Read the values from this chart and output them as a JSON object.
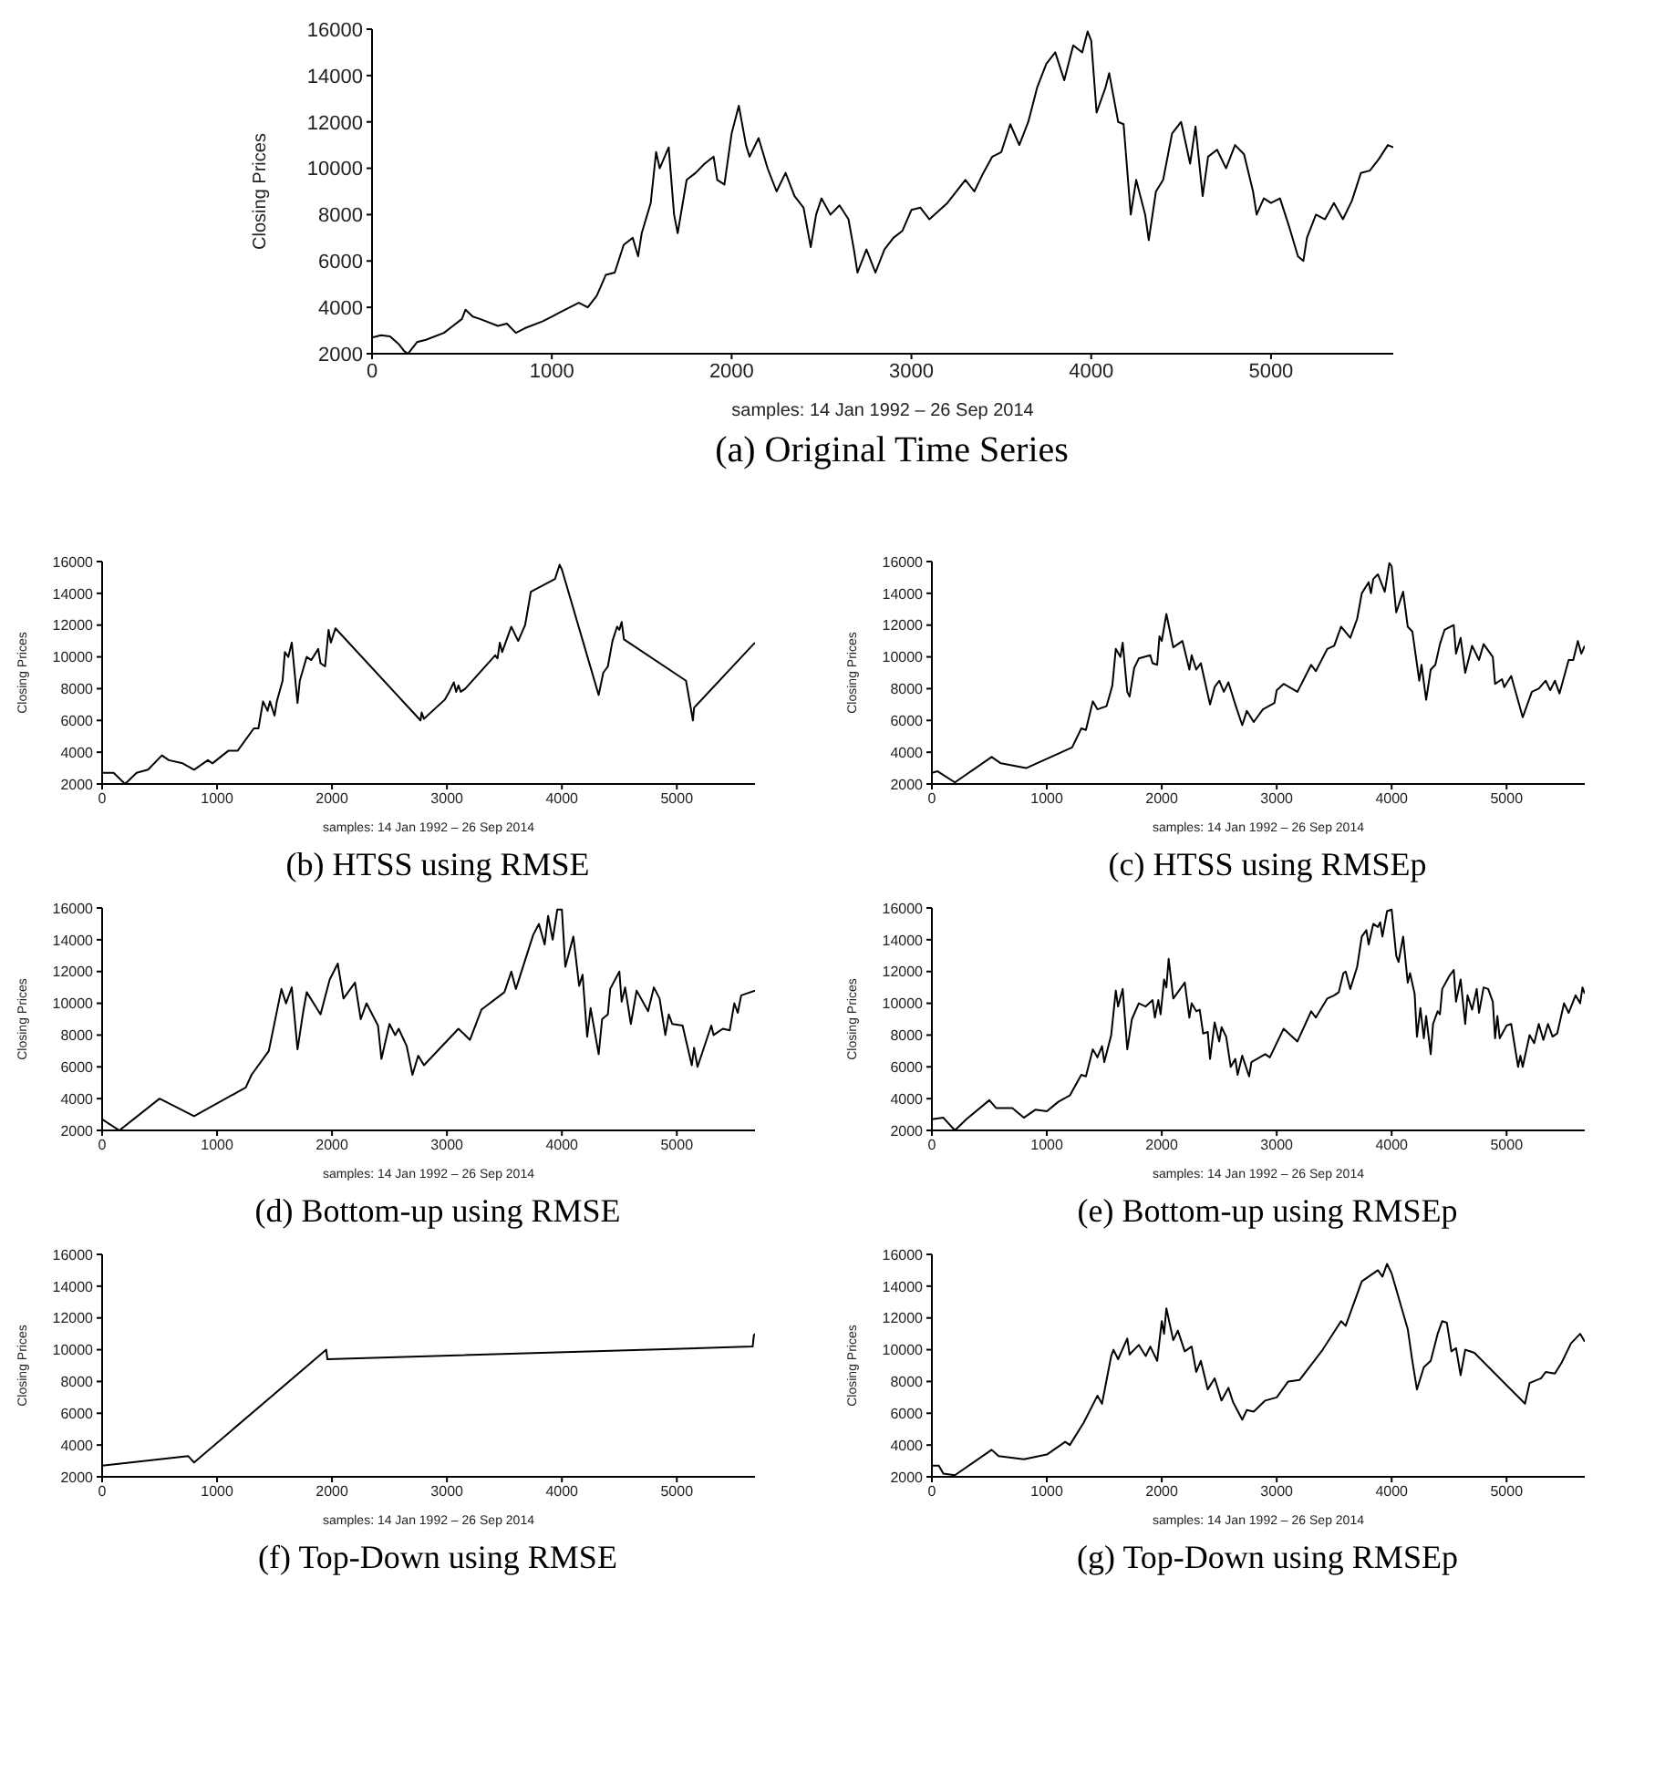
{
  "chart_data": [
    {
      "type": "line",
      "title": "(a) Original Time Series",
      "xlabel": "samples: 14 Jan 1992 – 26 Sep 2014",
      "ylabel": "Closing Prices",
      "color": "#000000",
      "xlim": [
        0,
        5680
      ],
      "ylim": [
        2000,
        16000
      ],
      "xticks": [
        0,
        1000,
        2000,
        3000,
        4000,
        5000
      ],
      "yticks": [
        2000,
        4000,
        6000,
        8000,
        10000,
        12000,
        14000,
        16000
      ],
      "x": [
        0,
        50,
        100,
        150,
        180,
        200,
        250,
        300,
        400,
        450,
        500,
        520,
        560,
        600,
        700,
        750,
        800,
        850,
        950,
        1000,
        1050,
        1100,
        1150,
        1200,
        1250,
        1300,
        1350,
        1400,
        1450,
        1480,
        1500,
        1550,
        1580,
        1600,
        1650,
        1680,
        1700,
        1750,
        1800,
        1850,
        1900,
        1920,
        1960,
        2000,
        2040,
        2080,
        2100,
        2150,
        2200,
        2250,
        2300,
        2350,
        2400,
        2440,
        2470,
        2500,
        2550,
        2600,
        2650,
        2680,
        2700,
        2750,
        2800,
        2850,
        2900,
        2950,
        3000,
        3050,
        3100,
        3200,
        3300,
        3350,
        3400,
        3450,
        3500,
        3550,
        3600,
        3650,
        3700,
        3750,
        3800,
        3850,
        3900,
        3950,
        3980,
        4000,
        4030,
        4080,
        4100,
        4150,
        4180,
        4220,
        4250,
        4300,
        4320,
        4360,
        4400,
        4450,
        4500,
        4550,
        4580,
        4620,
        4650,
        4700,
        4750,
        4800,
        4850,
        4900,
        4920,
        4960,
        5000,
        5050,
        5100,
        5150,
        5180,
        5200,
        5250,
        5300,
        5350,
        5400,
        5450,
        5500,
        5550,
        5600,
        5650,
        5680
      ],
      "values": [
        2700,
        2800,
        2750,
        2400,
        2100,
        2000,
        2500,
        2600,
        2900,
        3200,
        3500,
        3900,
        3600,
        3500,
        3200,
        3300,
        2900,
        3100,
        3400,
        3600,
        3800,
        4000,
        4200,
        4000,
        4500,
        5400,
        5500,
        6700,
        7000,
        6200,
        7200,
        8500,
        10700,
        10000,
        10900,
        8000,
        7200,
        9500,
        9800,
        10200,
        10500,
        9500,
        9300,
        11500,
        12700,
        11000,
        10500,
        11300,
        10000,
        9000,
        9800,
        8800,
        8300,
        6600,
        8000,
        8700,
        8000,
        8400,
        7800,
        6500,
        5500,
        6500,
        5500,
        6500,
        7000,
        7300,
        8200,
        8300,
        7800,
        8500,
        9500,
        9000,
        9800,
        10500,
        10700,
        11900,
        11000,
        12000,
        13500,
        14500,
        15000,
        13800,
        15300,
        15000,
        15900,
        15500,
        12400,
        13500,
        14100,
        12000,
        11900,
        8000,
        9500,
        8000,
        6900,
        9000,
        9500,
        11500,
        12000,
        10200,
        11800,
        8800,
        10500,
        10800,
        10000,
        11000,
        10600,
        9000,
        8000,
        8700,
        8500,
        8700,
        7500,
        6200,
        6000,
        7000,
        8000,
        7800,
        8500,
        7800,
        8600,
        9800,
        9900,
        10400,
        11000,
        10900
      ]
    },
    {
      "type": "line",
      "title": "(b) HTSS using RMSE",
      "xlabel": "samples: 14 Jan 1992 – 26 Sep 2014",
      "ylabel": "Closing Prices",
      "color": "#000000",
      "xlim": [
        0,
        5680
      ],
      "ylim": [
        2000,
        16000
      ],
      "xticks": [
        0,
        1000,
        2000,
        3000,
        4000,
        5000
      ],
      "yticks": [
        2000,
        4000,
        6000,
        8000,
        10000,
        12000,
        14000,
        16000
      ],
      "x": [
        0,
        100,
        200,
        300,
        400,
        520,
        580,
        700,
        800,
        920,
        960,
        1100,
        1180,
        1320,
        1360,
        1400,
        1440,
        1460,
        1500,
        1520,
        1570,
        1590,
        1620,
        1650,
        1700,
        1720,
        1780,
        1820,
        1880,
        1900,
        1940,
        1970,
        1990,
        2030,
        2770,
        2780,
        2800,
        2980,
        3020,
        3060,
        3080,
        3100,
        3120,
        3160,
        3420,
        3440,
        3460,
        3480,
        3560,
        3620,
        3680,
        3730,
        3940,
        3980,
        4000,
        4320,
        4360,
        4400,
        4440,
        4480,
        4500,
        4520,
        4540,
        5080,
        5140,
        5150,
        5680
      ],
      "values": [
        2700,
        2700,
        2000,
        2700,
        2900,
        3800,
        3500,
        3300,
        2900,
        3500,
        3300,
        4100,
        4100,
        5500,
        5500,
        7200,
        6600,
        7200,
        6300,
        7200,
        8500,
        10300,
        10000,
        10900,
        7100,
        8500,
        10000,
        9800,
        10500,
        9600,
        9400,
        11700,
        10900,
        11800,
        6000,
        6500,
        6100,
        7300,
        7800,
        8400,
        7800,
        8200,
        7800,
        8000,
        10100,
        9900,
        10900,
        10300,
        11900,
        11000,
        12000,
        14100,
        14900,
        15800,
        15500,
        7600,
        9000,
        9400,
        11000,
        11900,
        11700,
        12200,
        11100,
        8500,
        6000,
        6800,
        10900
      ]
    },
    {
      "type": "line",
      "title": "(c) HTSS using RMSEp",
      "xlabel": "samples: 14 Jan 1992 – 26 Sep 2014",
      "ylabel": "Closing Prices",
      "color": "#000000",
      "xlim": [
        0,
        5680
      ],
      "ylim": [
        2000,
        16000
      ],
      "xticks": [
        0,
        1000,
        2000,
        3000,
        4000,
        5000
      ],
      "yticks": [
        2000,
        4000,
        6000,
        8000,
        10000,
        12000,
        14000,
        16000
      ],
      "x": [
        0,
        50,
        200,
        520,
        600,
        820,
        1220,
        1300,
        1340,
        1400,
        1440,
        1520,
        1570,
        1600,
        1640,
        1660,
        1700,
        1720,
        1760,
        1800,
        1900,
        1920,
        1960,
        1980,
        2000,
        2040,
        2100,
        2180,
        2240,
        2260,
        2300,
        2340,
        2380,
        2420,
        2460,
        2500,
        2540,
        2580,
        2640,
        2700,
        2740,
        2800,
        2880,
        2980,
        3000,
        3060,
        3180,
        3300,
        3340,
        3440,
        3500,
        3560,
        3640,
        3700,
        3740,
        3800,
        3820,
        3840,
        3880,
        3940,
        3980,
        4000,
        4040,
        4100,
        4140,
        4180,
        4240,
        4260,
        4300,
        4340,
        4380,
        4420,
        4460,
        4540,
        4560,
        4600,
        4640,
        4700,
        4760,
        4800,
        4880,
        4900,
        4960,
        4980,
        5040,
        5140,
        5220,
        5280,
        5340,
        5380,
        5420,
        5460,
        5540,
        5580,
        5620,
        5650,
        5680
      ],
      "values": [
        2700,
        2800,
        2100,
        3700,
        3300,
        3000,
        4300,
        5500,
        5400,
        7200,
        6700,
        6900,
        8200,
        10500,
        10000,
        10900,
        7800,
        7500,
        9300,
        9900,
        10100,
        9600,
        9500,
        11300,
        11000,
        12700,
        10600,
        11000,
        9200,
        10100,
        9200,
        9600,
        8300,
        7000,
        8100,
        8500,
        7800,
        8400,
        7000,
        5700,
        6600,
        5900,
        6700,
        7100,
        7900,
        8300,
        7800,
        9500,
        9100,
        10500,
        10700,
        11900,
        11200,
        12400,
        14000,
        14700,
        14000,
        14900,
        15200,
        14100,
        15900,
        15700,
        12800,
        14100,
        11900,
        11600,
        8500,
        9500,
        7300,
        9200,
        9500,
        10800,
        11700,
        12000,
        10200,
        11200,
        9000,
        10700,
        9800,
        10800,
        10000,
        8300,
        8600,
        8100,
        8800,
        6200,
        7800,
        8000,
        8500,
        7900,
        8500,
        7700,
        9800,
        9800,
        11000,
        10200,
        10700
      ]
    },
    {
      "type": "line",
      "title": "(d) Bottom-up using RMSE",
      "xlabel": "samples: 14 Jan 1992 – 26 Sep 2014",
      "ylabel": "Closing Prices",
      "color": "#000000",
      "xlim": [
        0,
        5680
      ],
      "ylim": [
        2000,
        16000
      ],
      "xticks": [
        0,
        1000,
        2000,
        3000,
        4000,
        5000
      ],
      "yticks": [
        2000,
        4000,
        6000,
        8000,
        10000,
        12000,
        14000,
        16000
      ],
      "x": [
        0,
        150,
        500,
        800,
        1250,
        1300,
        1450,
        1560,
        1600,
        1650,
        1700,
        1750,
        1780,
        1900,
        1980,
        2050,
        2100,
        2200,
        2250,
        2300,
        2400,
        2430,
        2500,
        2550,
        2580,
        2650,
        2700,
        2750,
        2800,
        3100,
        3200,
        3300,
        3500,
        3560,
        3600,
        3750,
        3800,
        3850,
        3880,
        3920,
        3960,
        4000,
        4030,
        4100,
        4150,
        4180,
        4220,
        4250,
        4320,
        4350,
        4400,
        4420,
        4500,
        4520,
        4550,
        4600,
        4650,
        4750,
        4800,
        4850,
        4900,
        4930,
        4960,
        5050,
        5130,
        5150,
        5180,
        5300,
        5320,
        5400,
        5460,
        5500,
        5530,
        5560,
        5680
      ],
      "values": [
        2700,
        2000,
        4000,
        2900,
        4700,
        5500,
        7000,
        10900,
        10000,
        11000,
        7100,
        9500,
        10700,
        9300,
        11500,
        12500,
        10300,
        11300,
        9000,
        10000,
        8600,
        6500,
        8700,
        8000,
        8400,
        7300,
        5500,
        6700,
        6100,
        8400,
        7700,
        9600,
        10700,
        12000,
        10900,
        14300,
        15000,
        13700,
        15500,
        14000,
        15900,
        15900,
        12300,
        14200,
        11100,
        11800,
        7900,
        9700,
        6800,
        9000,
        9300,
        10900,
        12000,
        10100,
        11000,
        8700,
        10800,
        9500,
        11000,
        10300,
        8000,
        9300,
        8700,
        8600,
        6100,
        7200,
        6000,
        8600,
        8000,
        8400,
        8300,
        10000,
        9400,
        10500,
        10800
      ]
    },
    {
      "type": "line",
      "title": "(e) Bottom-up using RMSEp",
      "xlabel": "samples: 14 Jan 1992 – 26 Sep 2014",
      "ylabel": "Closing Prices",
      "color": "#000000",
      "xlim": [
        0,
        5680
      ],
      "ylim": [
        2000,
        16000
      ],
      "xticks": [
        0,
        1000,
        2000,
        3000,
        4000,
        5000
      ],
      "yticks": [
        2000,
        4000,
        6000,
        8000,
        10000,
        12000,
        14000,
        16000
      ],
      "x": [
        0,
        100,
        200,
        300,
        500,
        560,
        700,
        800,
        900,
        1000,
        1100,
        1200,
        1300,
        1340,
        1400,
        1440,
        1480,
        1500,
        1560,
        1600,
        1620,
        1660,
        1700,
        1740,
        1800,
        1860,
        1920,
        1940,
        1970,
        1990,
        2020,
        2040,
        2060,
        2100,
        2200,
        2240,
        2260,
        2300,
        2330,
        2360,
        2400,
        2420,
        2460,
        2500,
        2520,
        2560,
        2600,
        2640,
        2660,
        2700,
        2760,
        2780,
        2900,
        2940,
        3060,
        3180,
        3300,
        3340,
        3440,
        3500,
        3540,
        3580,
        3600,
        3640,
        3700,
        3740,
        3780,
        3800,
        3840,
        3880,
        3900,
        3920,
        3960,
        4000,
        4040,
        4060,
        4100,
        4140,
        4160,
        4200,
        4220,
        4250,
        4280,
        4300,
        4340,
        4360,
        4400,
        4420,
        4440,
        4500,
        4540,
        4560,
        4600,
        4640,
        4660,
        4700,
        4740,
        4760,
        4800,
        4840,
        4880,
        4900,
        4920,
        4940,
        5000,
        5040,
        5100,
        5120,
        5140,
        5200,
        5240,
        5280,
        5320,
        5360,
        5400,
        5440,
        5500,
        5540,
        5600,
        5640,
        5660,
        5680
      ],
      "values": [
        2700,
        2800,
        2000,
        2700,
        3900,
        3400,
        3400,
        2800,
        3300,
        3200,
        3800,
        4200,
        5500,
        5400,
        7100,
        6600,
        7300,
        6300,
        8000,
        10800,
        9800,
        10900,
        7100,
        9000,
        10000,
        9800,
        10200,
        9100,
        10200,
        9300,
        11500,
        11000,
        12800,
        10300,
        11300,
        9100,
        10000,
        9500,
        9600,
        8100,
        8200,
        6500,
        8800,
        7600,
        8500,
        7900,
        6000,
        6500,
        5500,
        6700,
        5400,
        6300,
        6800,
        6600,
        8400,
        7600,
        9500,
        9100,
        10300,
        10500,
        10700,
        11900,
        12000,
        10900,
        12300,
        14200,
        14600,
        13700,
        15000,
        14800,
        15100,
        14200,
        15800,
        15900,
        13000,
        12600,
        14200,
        11300,
        11900,
        10600,
        7900,
        9700,
        7800,
        9200,
        6800,
        8700,
        9500,
        9300,
        10900,
        11700,
        12100,
        10100,
        11500,
        8700,
        10500,
        9600,
        10900,
        9400,
        11000,
        10900,
        10100,
        7800,
        9200,
        7800,
        8600,
        8700,
        6000,
        6700,
        6000,
        8000,
        7500,
        8700,
        7700,
        8700,
        7900,
        8100,
        10000,
        9400,
        10500,
        10000,
        11000,
        10600
      ]
    },
    {
      "type": "line",
      "title": "(f) Top-Down using RMSE",
      "xlabel": "samples: 14 Jan 1992 – 26 Sep 2014",
      "ylabel": "Closing Prices",
      "color": "#000000",
      "xlim": [
        0,
        5680
      ],
      "ylim": [
        2000,
        16000
      ],
      "xticks": [
        0,
        1000,
        2000,
        3000,
        4000,
        5000
      ],
      "yticks": [
        2000,
        4000,
        6000,
        8000,
        10000,
        12000,
        14000,
        16000
      ],
      "x": [
        0,
        750,
        800,
        1950,
        1960,
        5660,
        5670,
        5680
      ],
      "values": [
        2700,
        3300,
        2900,
        10000,
        9400,
        10200,
        10900,
        11000
      ]
    },
    {
      "type": "line",
      "title": "(g) Top-Down using RMSEp",
      "xlabel": "samples: 14 Jan 1992 – 26 Sep 2014",
      "ylabel": "Closing Prices",
      "color": "#000000",
      "xlim": [
        0,
        5680
      ],
      "ylim": [
        2000,
        16000
      ],
      "xticks": [
        0,
        1000,
        2000,
        3000,
        4000,
        5000
      ],
      "yticks": [
        2000,
        4000,
        6000,
        8000,
        10000,
        12000,
        14000,
        16000
      ],
      "x": [
        0,
        60,
        100,
        200,
        520,
        580,
        800,
        1000,
        1160,
        1200,
        1320,
        1440,
        1480,
        1560,
        1580,
        1620,
        1700,
        1720,
        1800,
        1860,
        1900,
        1960,
        2000,
        2020,
        2040,
        2100,
        2140,
        2200,
        2260,
        2300,
        2340,
        2400,
        2460,
        2520,
        2580,
        2620,
        2700,
        2740,
        2800,
        2900,
        3000,
        3100,
        3200,
        3400,
        3560,
        3600,
        3740,
        3880,
        3920,
        3960,
        4000,
        4140,
        4180,
        4220,
        4280,
        4340,
        4400,
        4440,
        4480,
        4520,
        4560,
        4600,
        4640,
        4680,
        4720,
        5160,
        5200,
        5300,
        5340,
        5420,
        5480,
        5560,
        5640,
        5680
      ],
      "values": [
        2700,
        2700,
        2200,
        2100,
        3700,
        3300,
        3100,
        3400,
        4200,
        4000,
        5400,
        7100,
        6600,
        9600,
        10000,
        9400,
        10700,
        9700,
        10300,
        9600,
        10200,
        9300,
        11800,
        11000,
        12600,
        10600,
        11200,
        9900,
        10200,
        8600,
        9300,
        7500,
        8200,
        6800,
        7600,
        6700,
        5600,
        6200,
        6100,
        6800,
        7000,
        8000,
        8100,
        10000,
        11800,
        11500,
        14300,
        15000,
        14600,
        15400,
        14800,
        11300,
        9300,
        7500,
        8900,
        9300,
        11000,
        11800,
        11700,
        9900,
        10100,
        8400,
        10000,
        9900,
        9800,
        6600,
        7900,
        8200,
        8600,
        8500,
        9200,
        10400,
        11000,
        10500
      ]
    }
  ]
}
